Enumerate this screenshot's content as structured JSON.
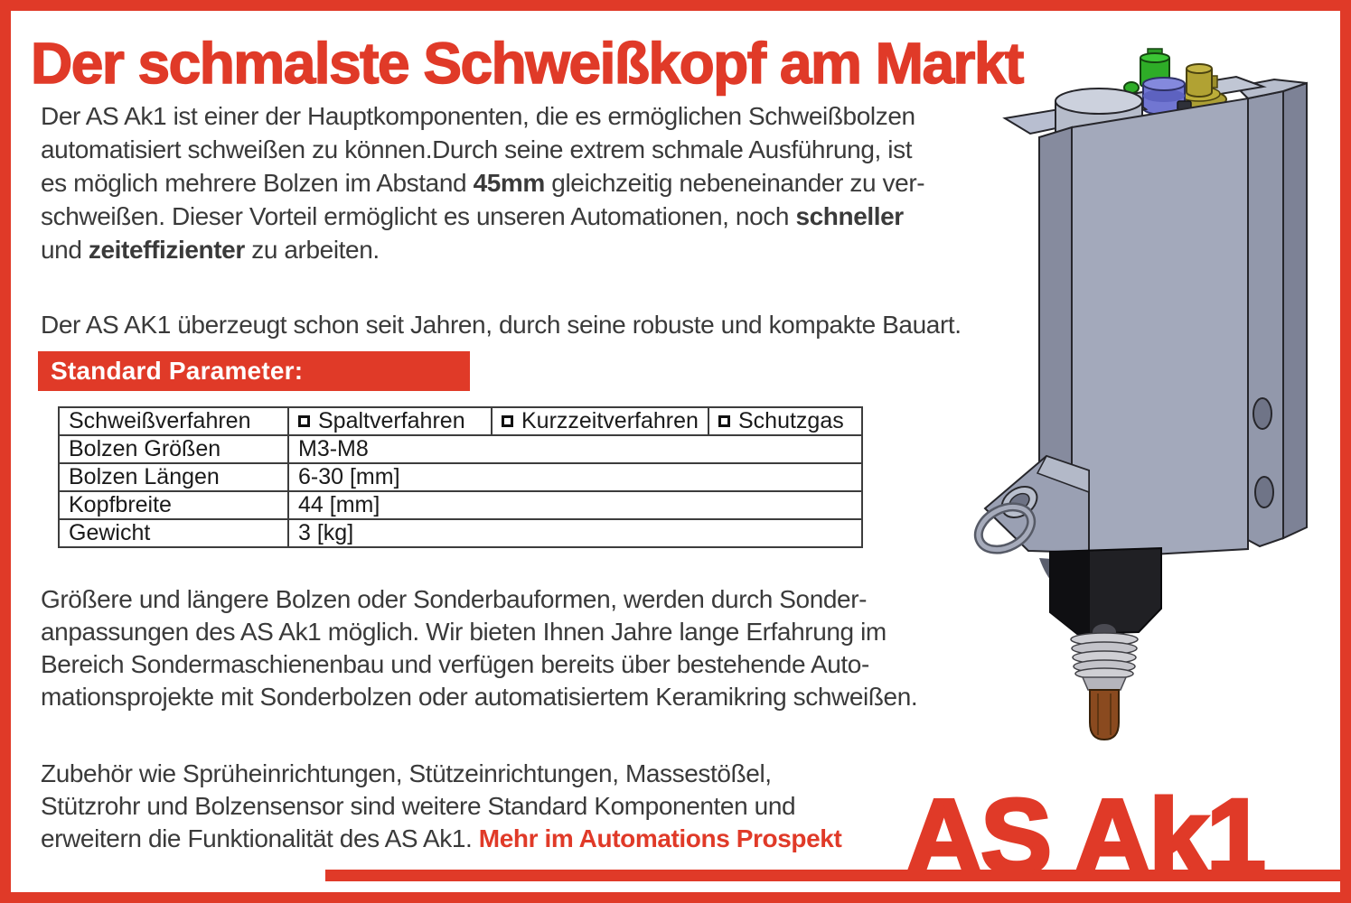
{
  "page": {
    "title": "Der schmalste Schweißkopf am Markt",
    "accent_red": "#E03A28",
    "text_color": "#3A3A3A"
  },
  "paragraphs": {
    "p1": [
      [
        {
          "t": "Der AS Ak1 ist einer der Hauptkomponenten, die es ermöglichen Schweißbolzen"
        }
      ],
      [
        {
          "t": "automatisiert schweißen zu können.Durch seine extrem schmale Ausführung, ist"
        }
      ],
      [
        {
          "t": "es möglich mehrere Bolzen im Abstand "
        },
        {
          "t": "45mm",
          "b": true
        },
        {
          "t": " gleichzeitig nebeneinander zu ver-"
        }
      ],
      [
        {
          "t": "schweißen. Dieser Vorteil ermöglicht es unseren Automationen, noch "
        },
        {
          "t": "schneller",
          "b": true
        }
      ],
      [
        {
          "t": "und "
        },
        {
          "t": "zeiteffizienter",
          "b": true
        },
        {
          "t": " zu arbeiten."
        }
      ]
    ],
    "p2": [
      [
        {
          "t": "Der AS AK1 überzeugt schon seit Jahren, durch seine robuste und kompakte Bauart."
        }
      ]
    ],
    "p3": [
      [
        {
          "t": "Größere und längere Bolzen oder Sonderbauformen, werden durch Sonder-"
        }
      ],
      [
        {
          "t": "anpassungen des AS Ak1 möglich. Wir bieten Ihnen Jahre lange Erfahrung im"
        }
      ],
      [
        {
          "t": "Bereich Sondermaschienenbau und verfügen bereits über bestehende Auto-"
        }
      ],
      [
        {
          "t": "mationsprojekte mit Sonderbolzen oder automatisiertem Keramikring schweißen."
        }
      ]
    ],
    "p4": [
      [
        {
          "t": "Zubehör wie Sprüheinrichtungen, Stützeinrichtungen, Massestößel,"
        }
      ],
      [
        {
          "t": "Stützrohr und Bolzensensor sind weitere Standard Komponenten und"
        }
      ],
      [
        {
          "t": "erweitern die Funktionalität des AS Ak1. "
        },
        {
          "t": "Mehr im Automations Prospekt",
          "b": true,
          "red": true
        }
      ]
    ]
  },
  "banner": {
    "label": "Standard Parameter:"
  },
  "table": {
    "header": {
      "label": "Schweißverfahren",
      "options": [
        "Spaltverfahren",
        "Kurzzeitverfahren",
        "Schutzgas"
      ]
    },
    "rows": [
      {
        "label": "Bolzen Größen",
        "value": "M3-M8"
      },
      {
        "label": "Bolzen Längen",
        "value": "6-30 [mm]"
      },
      {
        "label": "Kopfbreite",
        "value": "44 [mm]"
      },
      {
        "label": "Gewicht",
        "value": "3 [kg]"
      }
    ]
  },
  "logo": {
    "text": "AS Ak1"
  },
  "product_image": {
    "alt": "CAD render of the AS Ak1 welding head",
    "colors": {
      "body_gray": "#A3A9BB",
      "body_gray_dark": "#868B9E",
      "body_gray_light": "#BCC2D1",
      "fitting_green": "#2EAD27",
      "fitting_blue": "#7176D2",
      "fitting_yellow": "#B1A233",
      "chuck_black": "#202024",
      "collet_brown": "#8A4A1F"
    }
  }
}
